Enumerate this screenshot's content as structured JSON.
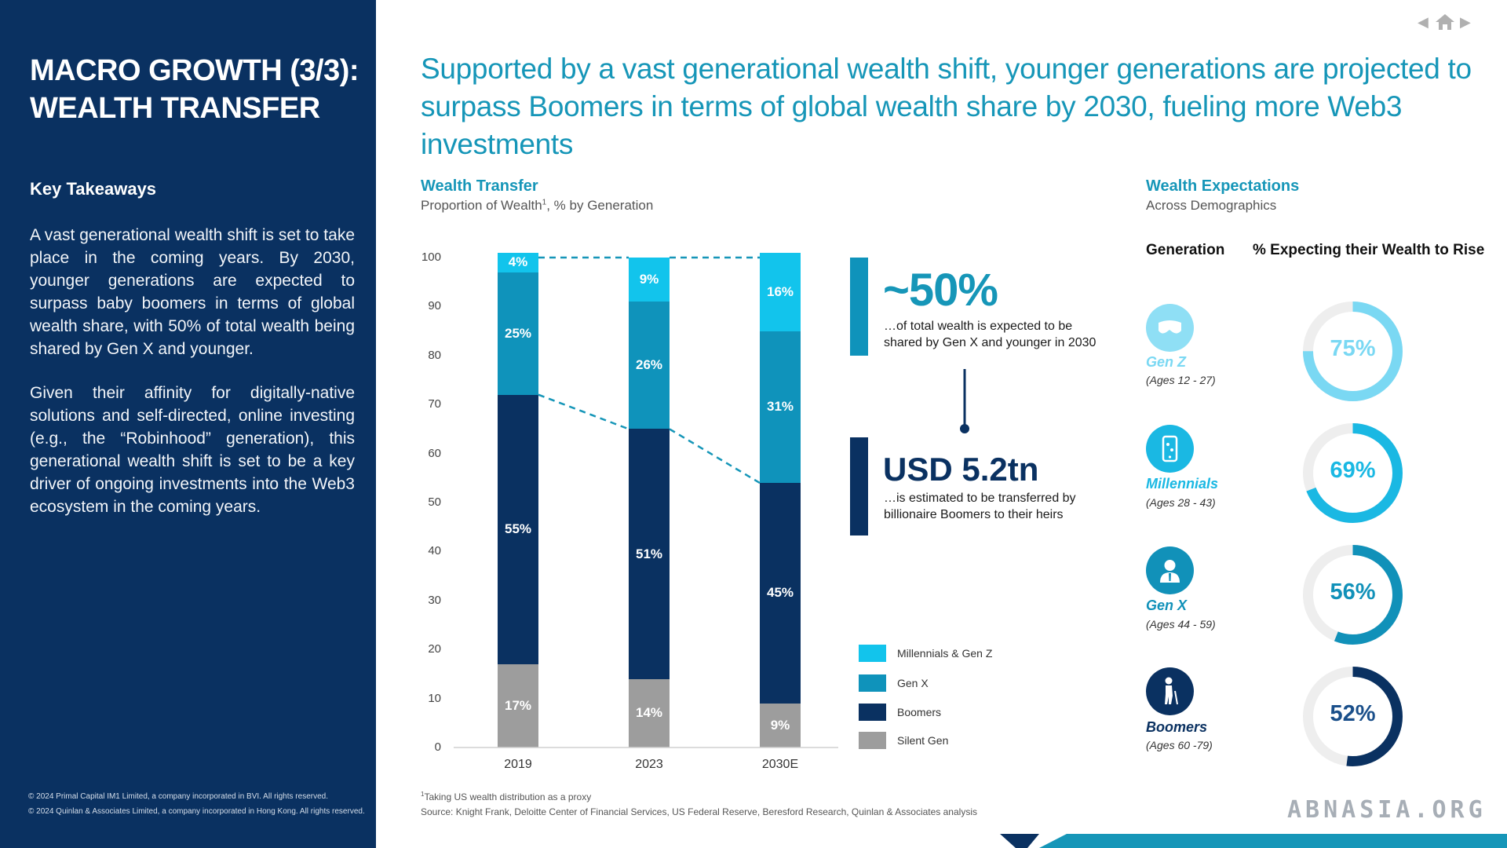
{
  "sidebar": {
    "title_line1": "MACRO GROWTH (3/3):",
    "title_line2": "WEALTH TRANSFER",
    "key_takeaways_heading": "Key Takeaways",
    "paragraph1": "A vast generational wealth shift is set to take place in the coming years. By 2030, younger generations are expected to surpass baby boomers in terms of global wealth share, with 50% of total wealth being shared by Gen X and younger.",
    "paragraph2": "Given their affinity for digitally-native solutions and self-directed, online investing (e.g., the “Robinhood” generation), this generational wealth shift is set to be a key driver of ongoing investments into the Web3 ecosystem in the coming years.",
    "copyright1": "© 2024 Primal Capital IM1 Limited, a company incorporated in BVI. All rights reserved.",
    "copyright2": "© 2024 Quinlan & Associates Limited, a company incorporated in Hong Kong. All rights reserved."
  },
  "headline": "Supported by a vast generational wealth shift, younger generations are projected to surpass Boomers in terms of global wealth share by 2030, fueling more Web3 investments",
  "nav": {
    "prev_icon": "left-triangle-icon",
    "home_icon": "home-icon",
    "next_icon": "right-triangle-icon"
  },
  "wealth_transfer": {
    "title": "Wealth Transfer",
    "subtitle": "Proportion of Wealth",
    "subtitle_sup": "1",
    "subtitle_suffix": ", % by Generation"
  },
  "colors": {
    "millennials_genz": "#12c4ec",
    "gen_x": "#0f93bb",
    "boomers": "#0a3161",
    "silent_gen": "#9d9d9d",
    "accent": "#1696b8"
  },
  "chart_data": {
    "type": "bar",
    "stacked": true,
    "categories": [
      "2019",
      "2023",
      "2030E"
    ],
    "series": [
      {
        "name": "Silent Gen",
        "values": [
          17,
          14,
          9
        ],
        "labels": [
          "17%",
          "14%",
          "9%"
        ]
      },
      {
        "name": "Boomers",
        "values": [
          55,
          51,
          45
        ],
        "labels": [
          "55%",
          "51%",
          "45%"
        ]
      },
      {
        "name": "Gen X",
        "values": [
          25,
          26,
          31
        ],
        "labels": [
          "25%",
          "26%",
          "31%"
        ]
      },
      {
        "name": "Millennials & Gen Z",
        "values": [
          4,
          9,
          16
        ],
        "labels": [
          "4%",
          "9%",
          "16%"
        ]
      }
    ],
    "ylim": [
      0,
      100
    ],
    "yticks": [
      "0",
      "10",
      "20",
      "30",
      "40",
      "50",
      "60",
      "70",
      "80",
      "90",
      "100"
    ],
    "legend": [
      "Millennials & Gen Z",
      "Gen X",
      "Boomers",
      "Silent Gen"
    ],
    "legend_position": "bottom-right"
  },
  "callouts": {
    "c1_value": "~50%",
    "c1_text_line1": "…of total wealth is expected to be",
    "c1_text_line2": "shared by Gen X and younger in 2030",
    "c2_value": "USD 5.2tn",
    "c2_text_line1": "…is estimated to be transferred by",
    "c2_text_line2": "billionaire Boomers to their heirs"
  },
  "wealth_expectations": {
    "title": "Wealth Expectations",
    "subtitle": "Across Demographics",
    "col_generation": "Generation",
    "col_expecting": "% Expecting their Wealth to Rise",
    "rows": [
      {
        "name": "Gen Z",
        "ages": "(Ages 12 - 27)",
        "value": "75%",
        "pct": 75,
        "color": "#7ad8f3",
        "icon": "vr-headset-icon"
      },
      {
        "name": "Millennials",
        "ages": "(Ages 28 - 43)",
        "value": "69%",
        "pct": 69,
        "color": "#1ab8e3",
        "icon": "smartphone-icon"
      },
      {
        "name": "Gen X",
        "ages": "(Ages 44 - 59)",
        "value": "56%",
        "pct": 56,
        "color": "#1191b9",
        "icon": "businessperson-icon"
      },
      {
        "name": "Boomers",
        "ages": "(Ages 60 -79)",
        "value": "52%",
        "pct": 52,
        "color": "#0a3161",
        "icon": "elderly-person-icon"
      }
    ]
  },
  "footnotes": {
    "note1_sup": "1",
    "note1": "Taking US wealth distribution as a proxy",
    "source": "Source: Knight Frank, Deloitte Center of Financial Services, US Federal Reserve, Beresford Research, Quinlan & Associates analysis"
  },
  "watermark": "ABNASIA.ORG"
}
